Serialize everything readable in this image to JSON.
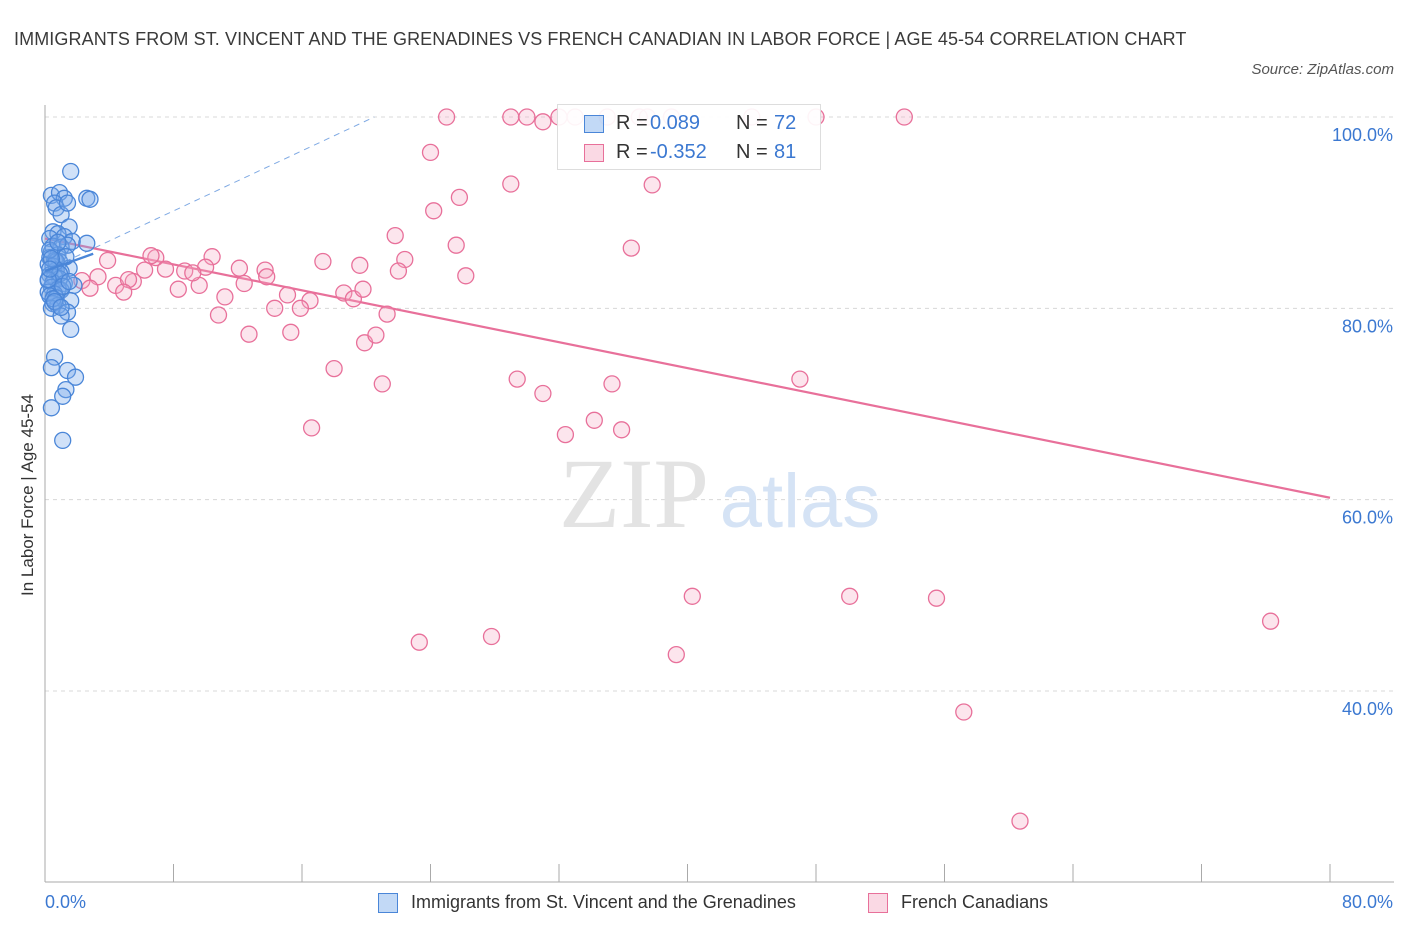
{
  "header": {
    "title": "IMMIGRANTS FROM ST. VINCENT AND THE GRENADINES VS FRENCH CANADIAN IN LABOR FORCE | AGE 45-54 CORRELATION CHART",
    "source": "Source: ZipAtlas.com"
  },
  "watermark": {
    "zip": "ZIP",
    "atlas": "atlas"
  },
  "legend": {
    "r_label": "R =",
    "n_label": "N =",
    "series": [
      {
        "name": "Immigrants from St. Vincent and the Grenadines",
        "r": "0.089",
        "n": "72"
      },
      {
        "name": "French Canadians",
        "r": "-0.352",
        "n": "81"
      }
    ]
  },
  "colors": {
    "blue": "#4a86d8",
    "blue_fill": "rgba(120,170,235,0.35)",
    "pink": "#e8709a",
    "pink_fill": "rgba(245,170,195,0.30)",
    "grid": "#d8d8d8",
    "tick_text": "#3b78d1"
  },
  "chart_data": {
    "type": "scatter",
    "title": "IMMIGRANTS FROM ST. VINCENT AND THE GRENADINES VS FRENCH CANADIAN IN LABOR FORCE | AGE 45-54 CORRELATION CHART",
    "xlabel": "",
    "ylabel": "In Labor Force | Age 45-54",
    "xlim": [
      0,
      80
    ],
    "ylim": [
      20,
      102
    ],
    "x_tick_labels": [
      "0.0%",
      "80.0%"
    ],
    "y_ticks": [
      40,
      60,
      80,
      100
    ],
    "y_tick_labels": [
      "40.0%",
      "60.0%",
      "80.0%",
      "100.0%"
    ],
    "grid": true,
    "legend_position": "top-center",
    "series": [
      {
        "name": "Immigrants from St. Vincent and the Grenadines",
        "color": "blue",
        "points": [
          [
            1.6,
            94.3
          ],
          [
            0.4,
            91.8
          ],
          [
            0.9,
            92.1
          ],
          [
            1.2,
            91.5
          ],
          [
            0.6,
            91.0
          ],
          [
            2.6,
            91.5
          ],
          [
            2.8,
            91.4
          ],
          [
            0.7,
            90.5
          ],
          [
            1.0,
            89.8
          ],
          [
            1.4,
            91.0
          ],
          [
            1.5,
            88.5
          ],
          [
            0.5,
            88.0
          ],
          [
            0.8,
            87.8
          ],
          [
            1.2,
            87.5
          ],
          [
            0.3,
            87.3
          ],
          [
            1.7,
            87.0
          ],
          [
            2.6,
            86.8
          ],
          [
            0.5,
            86.5
          ],
          [
            1.0,
            86.4
          ],
          [
            1.4,
            86.6
          ],
          [
            0.4,
            85.9
          ],
          [
            0.8,
            85.6
          ],
          [
            0.3,
            85.3
          ],
          [
            0.6,
            85.0
          ],
          [
            0.9,
            84.9
          ],
          [
            0.2,
            84.6
          ],
          [
            0.5,
            84.4
          ],
          [
            1.5,
            84.2
          ],
          [
            0.7,
            84.0
          ],
          [
            1.0,
            83.8
          ],
          [
            0.3,
            83.5
          ],
          [
            0.6,
            83.3
          ],
          [
            0.9,
            83.1
          ],
          [
            0.2,
            82.9
          ],
          [
            0.5,
            82.7
          ],
          [
            1.2,
            82.6
          ],
          [
            1.8,
            82.4
          ],
          [
            0.4,
            82.2
          ],
          [
            0.8,
            82.0
          ],
          [
            1.0,
            81.9
          ],
          [
            0.2,
            81.7
          ],
          [
            0.6,
            81.5
          ],
          [
            0.3,
            81.3
          ],
          [
            0.7,
            81.1
          ],
          [
            1.6,
            80.8
          ],
          [
            0.5,
            80.5
          ],
          [
            0.8,
            80.3
          ],
          [
            0.4,
            80.0
          ],
          [
            1.4,
            79.6
          ],
          [
            1.0,
            79.2
          ],
          [
            1.6,
            77.8
          ],
          [
            0.6,
            74.9
          ],
          [
            0.4,
            73.8
          ],
          [
            1.4,
            73.5
          ],
          [
            1.9,
            72.8
          ],
          [
            1.3,
            71.5
          ],
          [
            1.1,
            70.8
          ],
          [
            0.4,
            69.6
          ],
          [
            1.1,
            66.2
          ],
          [
            0.7,
            84.9
          ],
          [
            0.3,
            86.1
          ],
          [
            1.3,
            85.4
          ],
          [
            0.9,
            83.6
          ],
          [
            0.5,
            81.0
          ],
          [
            0.2,
            83.0
          ],
          [
            1.1,
            82.3
          ],
          [
            0.6,
            80.7
          ],
          [
            0.4,
            85.2
          ],
          [
            0.8,
            86.9
          ],
          [
            1.5,
            82.8
          ],
          [
            0.3,
            84.1
          ],
          [
            1.0,
            80.1
          ]
        ],
        "trend": [
          [
            0.0,
            83.9
          ],
          [
            3.0,
            85.7
          ]
        ],
        "trend_extended": [
          [
            0.0,
            83.9
          ],
          [
            20.5,
            100.0
          ]
        ]
      },
      {
        "name": "French Canadians",
        "color": "pink",
        "points": [
          [
            25.0,
            100.0
          ],
          [
            29.0,
            100.0
          ],
          [
            30.0,
            100.0
          ],
          [
            32.0,
            100.0
          ],
          [
            33.0,
            100.0
          ],
          [
            35.0,
            100.0
          ],
          [
            37.0,
            100.0
          ],
          [
            37.5,
            100.0
          ],
          [
            39.0,
            100.0
          ],
          [
            44.0,
            100.0
          ],
          [
            48.0,
            100.0
          ],
          [
            53.5,
            100.0
          ],
          [
            24.0,
            96.3
          ],
          [
            29.0,
            93.0
          ],
          [
            37.8,
            92.9
          ],
          [
            25.8,
            91.6
          ],
          [
            24.2,
            90.2
          ],
          [
            21.8,
            87.6
          ],
          [
            25.6,
            86.6
          ],
          [
            36.5,
            86.3
          ],
          [
            3.9,
            85.0
          ],
          [
            6.9,
            85.3
          ],
          [
            6.6,
            85.5
          ],
          [
            10.4,
            85.4
          ],
          [
            17.3,
            84.9
          ],
          [
            22.4,
            85.1
          ],
          [
            2.3,
            82.9
          ],
          [
            3.3,
            83.3
          ],
          [
            6.2,
            84.0
          ],
          [
            8.7,
            83.9
          ],
          [
            10.0,
            84.3
          ],
          [
            12.1,
            84.2
          ],
          [
            13.7,
            84.0
          ],
          [
            22.0,
            83.9
          ],
          [
            26.2,
            83.4
          ],
          [
            4.4,
            82.4
          ],
          [
            5.5,
            82.8
          ],
          [
            5.2,
            83.0
          ],
          [
            8.3,
            82.0
          ],
          [
            9.6,
            82.4
          ],
          [
            11.2,
            81.2
          ],
          [
            12.4,
            82.6
          ],
          [
            13.8,
            83.3
          ],
          [
            2.8,
            82.1
          ],
          [
            4.9,
            81.7
          ],
          [
            15.1,
            81.4
          ],
          [
            16.5,
            80.8
          ],
          [
            18.6,
            81.6
          ],
          [
            19.2,
            81.0
          ],
          [
            19.8,
            82.0
          ],
          [
            10.8,
            79.3
          ],
          [
            14.3,
            80.0
          ],
          [
            15.9,
            80.0
          ],
          [
            21.3,
            79.4
          ],
          [
            12.7,
            77.3
          ],
          [
            15.3,
            77.5
          ],
          [
            19.9,
            76.4
          ],
          [
            20.6,
            77.2
          ],
          [
            18.0,
            73.7
          ],
          [
            21.0,
            72.1
          ],
          [
            29.4,
            72.6
          ],
          [
            35.3,
            72.1
          ],
          [
            47.0,
            72.6
          ],
          [
            31.0,
            71.1
          ],
          [
            34.2,
            68.3
          ],
          [
            35.9,
            67.3
          ],
          [
            32.4,
            66.8
          ],
          [
            16.6,
            67.5
          ],
          [
            40.3,
            49.9
          ],
          [
            50.1,
            49.9
          ],
          [
            55.5,
            49.7
          ],
          [
            76.3,
            47.3
          ],
          [
            23.3,
            45.1
          ],
          [
            27.8,
            45.7
          ],
          [
            39.3,
            43.8
          ],
          [
            57.2,
            37.8
          ],
          [
            60.7,
            26.4
          ],
          [
            19.6,
            84.5
          ],
          [
            31.0,
            99.5
          ],
          [
            7.5,
            84.1
          ],
          [
            9.2,
            83.7
          ]
        ],
        "trend": [
          [
            0.0,
            87.3
          ],
          [
            80.0,
            60.2
          ]
        ]
      }
    ]
  }
}
